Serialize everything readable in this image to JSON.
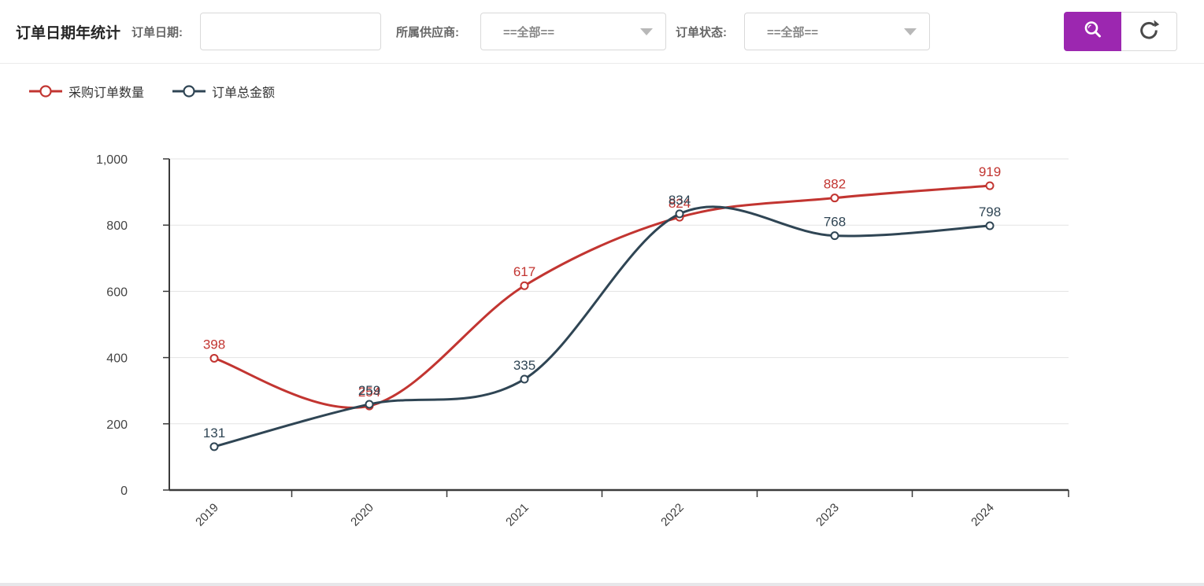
{
  "header": {
    "title": "订单日期年统计",
    "date_label": "订单日期:",
    "date_value": "",
    "supplier_label": "所属供应商:",
    "supplier_value": "==全部==",
    "status_label": "订单状态:",
    "status_value": "==全部==",
    "accent_color": "#9c27b0"
  },
  "chart_data": {
    "type": "line",
    "title": "",
    "categories": [
      "2019",
      "2020",
      "2021",
      "2022",
      "2023",
      "2024"
    ],
    "series": [
      {
        "name": "采购订单数量",
        "color": "#c23531",
        "values": [
          398,
          254,
          617,
          824,
          882,
          919
        ]
      },
      {
        "name": "订单总金额",
        "color": "#2f4554",
        "values": [
          131,
          259,
          335,
          834,
          768,
          798
        ]
      }
    ],
    "ylim": [
      0,
      1000
    ],
    "yticks": [
      0,
      200,
      400,
      600,
      800,
      1000
    ],
    "ytick_labels": [
      "0",
      "200",
      "400",
      "600",
      "800",
      "1,000"
    ],
    "grid": true,
    "smooth": true,
    "data_labels": true,
    "legend_position": "top-left",
    "x_label_rotation": 45
  }
}
